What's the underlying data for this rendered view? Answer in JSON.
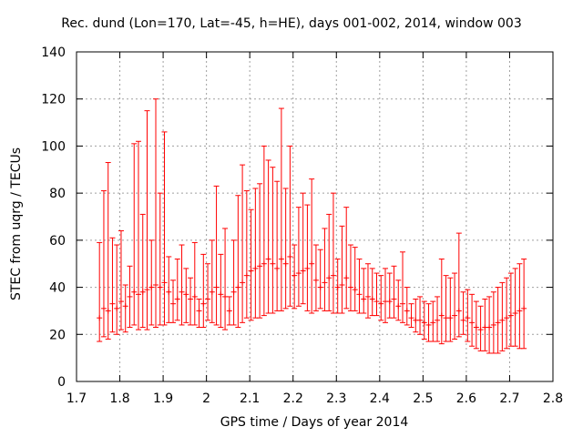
{
  "chart_data": {
    "type": "errorbar",
    "title": "Rec. dund (Lon=170, Lat=-45, h=HE), days 001-002, 2014, window 003",
    "xlabel": "GPS time / Days of year 2014",
    "ylabel": "STEC from uqrg / TECUs",
    "xlim": [
      1.7,
      2.8
    ],
    "ylim": [
      0,
      140
    ],
    "xticks": [
      "1.7",
      "1.8",
      "1.9",
      "2",
      "2.1",
      "2.2",
      "2.3",
      "2.4",
      "2.5",
      "2.6",
      "2.7",
      "2.8"
    ],
    "yticks": [
      "0",
      "20",
      "40",
      "60",
      "80",
      "100",
      "120",
      "140"
    ],
    "grid": true,
    "color": "#ff0000",
    "series": [
      {
        "name": "STEC",
        "x": [
          1.753,
          1.763,
          1.773,
          1.783,
          1.793,
          1.803,
          1.813,
          1.823,
          1.833,
          1.843,
          1.853,
          1.863,
          1.873,
          1.883,
          1.893,
          1.903,
          1.913,
          1.923,
          1.933,
          1.943,
          1.953,
          1.963,
          1.973,
          1.983,
          1.993,
          2.003,
          2.013,
          2.023,
          2.033,
          2.043,
          2.053,
          2.063,
          2.073,
          2.083,
          2.093,
          2.103,
          2.113,
          2.123,
          2.133,
          2.143,
          2.153,
          2.163,
          2.173,
          2.183,
          2.193,
          2.203,
          2.213,
          2.223,
          2.233,
          2.243,
          2.253,
          2.263,
          2.273,
          2.283,
          2.293,
          2.303,
          2.313,
          2.323,
          2.333,
          2.343,
          2.353,
          2.363,
          2.373,
          2.383,
          2.393,
          2.403,
          2.413,
          2.423,
          2.433,
          2.443,
          2.453,
          2.463,
          2.473,
          2.483,
          2.493,
          2.503,
          2.513,
          2.523,
          2.533,
          2.543,
          2.553,
          2.563,
          2.573,
          2.583,
          2.593,
          2.603,
          2.613,
          2.623,
          2.633,
          2.643,
          2.653,
          2.663,
          2.673,
          2.683,
          2.693,
          2.703,
          2.713,
          2.723,
          2.733
        ],
        "ylow": [
          17,
          19,
          18,
          21,
          20,
          22,
          21,
          23,
          24,
          22,
          23,
          22,
          24,
          23,
          24,
          24,
          25,
          25,
          26,
          24,
          25,
          24,
          24,
          23,
          23,
          26,
          25,
          24,
          23,
          22,
          24,
          24,
          23,
          25,
          27,
          26,
          27,
          27,
          28,
          29,
          29,
          30,
          30,
          31,
          32,
          31,
          32,
          33,
          30,
          29,
          30,
          31,
          30,
          30,
          29,
          29,
          29,
          31,
          30,
          30,
          29,
          29,
          27,
          28,
          28,
          26,
          25,
          27,
          27,
          26,
          25,
          24,
          23,
          21,
          20,
          18,
          17,
          17,
          17,
          16,
          17,
          17,
          18,
          19,
          20,
          17,
          15,
          14,
          13,
          13,
          12,
          12,
          12,
          13,
          14,
          15,
          15,
          14,
          14
        ],
        "yhigh": [
          59,
          81,
          93,
          61,
          58,
          64,
          41,
          49,
          101,
          102,
          71,
          115,
          60,
          120,
          80,
          106,
          53,
          43,
          52,
          58,
          48,
          44,
          59,
          35,
          54,
          50,
          60,
          83,
          54,
          65,
          36,
          60,
          79,
          92,
          81,
          73,
          82,
          84,
          100,
          94,
          91,
          85,
          116,
          82,
          100,
          58,
          74,
          80,
          75,
          86,
          58,
          56,
          65,
          71,
          80,
          52,
          66,
          74,
          58,
          57,
          52,
          48,
          50,
          48,
          46,
          45,
          48,
          46,
          49,
          43,
          55,
          40,
          33,
          35,
          36,
          34,
          33,
          34,
          36,
          52,
          45,
          44,
          46,
          63,
          38,
          39,
          37,
          34,
          32,
          35,
          36,
          38,
          40,
          42,
          44,
          46,
          48,
          50,
          52
        ],
        "y": [
          27,
          31,
          30,
          33,
          31,
          34,
          32,
          36,
          38,
          37,
          38,
          39,
          40,
          41,
          40,
          42,
          38,
          33,
          35,
          38,
          37,
          35,
          36,
          30,
          33,
          35,
          38,
          40,
          37,
          36,
          30,
          38,
          40,
          42,
          45,
          47,
          48,
          49,
          50,
          52,
          50,
          48,
          52,
          50,
          53,
          45,
          46,
          47,
          48,
          50,
          43,
          40,
          42,
          44,
          45,
          40,
          41,
          44,
          40,
          39,
          37,
          35,
          36,
          35,
          34,
          33,
          34,
          34,
          35,
          32,
          33,
          30,
          27,
          26,
          26,
          25,
          24,
          25,
          26,
          28,
          27,
          27,
          28,
          30,
          26,
          27,
          25,
          23,
          22,
          23,
          23,
          24,
          25,
          26,
          27,
          28,
          29,
          30,
          31
        ]
      }
    ]
  }
}
